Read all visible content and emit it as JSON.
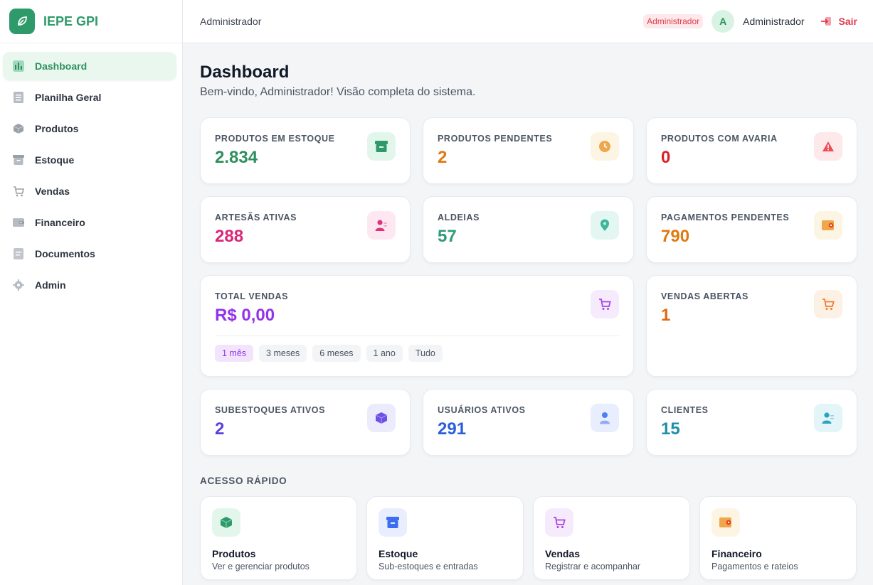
{
  "brand": {
    "name": "IEPE GPI",
    "color": "#2e9a6a"
  },
  "sidebar": {
    "items": [
      {
        "label": "Dashboard",
        "icon": "bar-chart-icon",
        "active": true
      },
      {
        "label": "Planilha Geral",
        "icon": "spreadsheet-icon"
      },
      {
        "label": "Produtos",
        "icon": "box-icon"
      },
      {
        "label": "Estoque",
        "icon": "archive-icon"
      },
      {
        "label": "Vendas",
        "icon": "cart-icon"
      },
      {
        "label": "Financeiro",
        "icon": "wallet-icon"
      },
      {
        "label": "Documentos",
        "icon": "document-icon"
      },
      {
        "label": "Admin",
        "icon": "gear-icon"
      }
    ]
  },
  "header": {
    "title": "Administrador",
    "role_badge": "Administrador",
    "avatar_initial": "A",
    "user_name": "Administrador",
    "logout_label": "Sair"
  },
  "main": {
    "title": "Dashboard",
    "subtitle": "Bem-vindo, Administrador! Visão completa do sistema.",
    "stats": [
      {
        "label": "Produtos em estoque",
        "value": "2.834",
        "color": "#2e8f5e",
        "icon": "archive-icon"
      },
      {
        "label": "Produtos pendentes",
        "value": "2",
        "color": "#e07a10",
        "icon": "clock-icon"
      },
      {
        "label": "Produtos com avaria",
        "value": "0",
        "color": "#dc1f26",
        "icon": "warning-icon"
      },
      {
        "label": "Artesãs ativas",
        "value": "288",
        "color": "#db2777",
        "icon": "users-icon"
      },
      {
        "label": "Aldeias",
        "value": "57",
        "color": "#2e9a7a",
        "icon": "map-pin-icon"
      },
      {
        "label": "Pagamentos pendentes",
        "value": "790",
        "color": "#e07a10",
        "icon": "wallet-icon"
      },
      {
        "label": "Total vendas",
        "value": "R$ 0,00",
        "color": "#9333ea",
        "icon": "cart-icon"
      },
      {
        "label": "Vendas abertas",
        "value": "1",
        "color": "#e06a10",
        "icon": "cart-icon"
      },
      {
        "label": "Subestoques ativos",
        "value": "2",
        "color": "#5b3fdc",
        "icon": "cube-icon"
      },
      {
        "label": "Usuários ativos",
        "value": "291",
        "color": "#2b5fd9",
        "icon": "user-icon"
      },
      {
        "label": "Clientes",
        "value": "15",
        "color": "#1f8ea8",
        "icon": "users-icon"
      }
    ],
    "periods": [
      "1 mês",
      "3 meses",
      "6 meses",
      "1 ano",
      "Tudo"
    ],
    "active_period": "1 mês",
    "quick_access_title": "ACESSO RÁPIDO",
    "quick_access": [
      {
        "title": "Produtos",
        "desc": "Ver e gerenciar produtos",
        "icon": "box-icon"
      },
      {
        "title": "Estoque",
        "desc": "Sub-estoques e entradas",
        "icon": "archive-icon"
      },
      {
        "title": "Vendas",
        "desc": "Registrar e acompanhar",
        "icon": "cart-icon"
      },
      {
        "title": "Financeiro",
        "desc": "Pagamentos e rateios",
        "icon": "wallet-icon"
      }
    ]
  }
}
